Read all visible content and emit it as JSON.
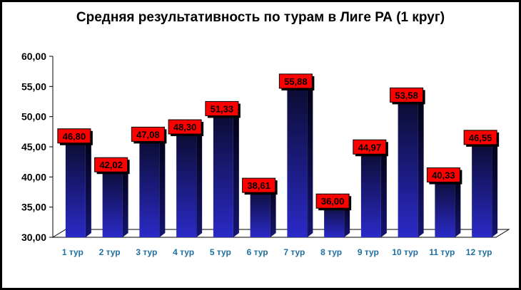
{
  "chart_data": {
    "type": "bar",
    "title": "Средняя результативность по турам в Лиге РА (1 круг)",
    "categories": [
      "1 тур",
      "2 тур",
      "3 тур",
      "4 тур",
      "5 тур",
      "6 тур",
      "7 тур",
      "8 тур",
      "9 тур",
      "10 тур",
      "11 тур",
      "12 тур"
    ],
    "values": [
      46.8,
      42.02,
      47.08,
      48.3,
      51.33,
      38.61,
      55.88,
      36.0,
      44.97,
      53.58,
      40.33,
      46.55
    ],
    "data_labels": [
      "46,80",
      "42,02",
      "47,08",
      "48,30",
      "51,33",
      "38,61",
      "55,88",
      "36,00",
      "44,97",
      "53,58",
      "40,33",
      "46,55"
    ],
    "ylim": [
      30,
      60
    ],
    "y_ticks": [
      "30,00",
      "35,00",
      "40,00",
      "45,00",
      "50,00",
      "55,00",
      "60,00"
    ],
    "grid": false,
    "legend": "none",
    "colors": {
      "bar_top": "#0a0a2a",
      "bar_bottom": "#2a2ac8",
      "label_fill": "#ff0000",
      "tick_label": "#1f6fa0"
    }
  }
}
